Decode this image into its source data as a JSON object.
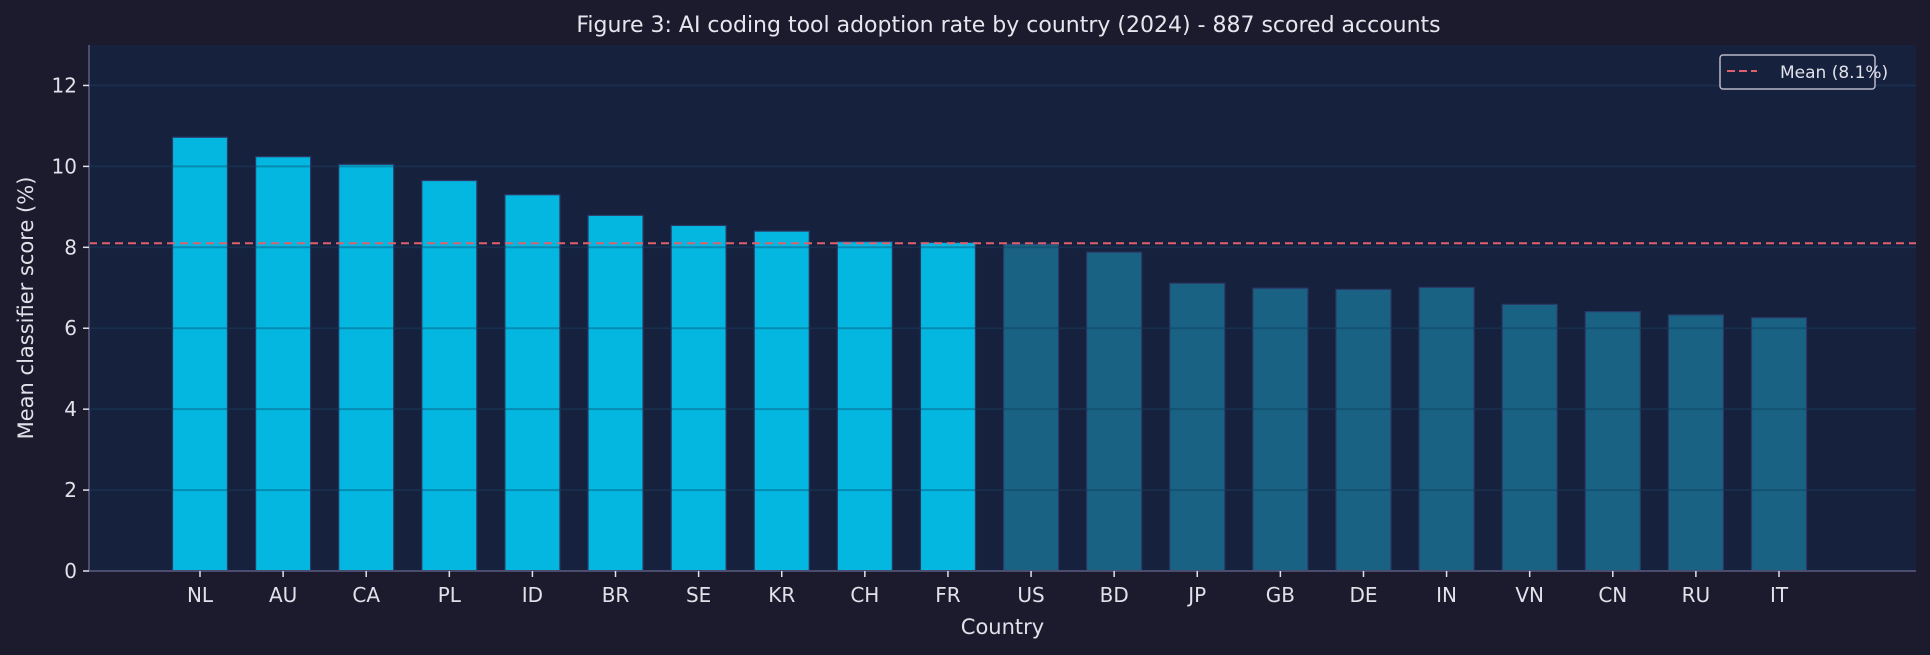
{
  "chart_data": {
    "type": "bar",
    "title": "Figure 3: AI coding tool adoption rate by country (2024) - 887 scored accounts",
    "xlabel": "Country",
    "ylabel": "Mean classifier score (%)",
    "ylim": [
      0,
      13
    ],
    "yticks": [
      0,
      2,
      4,
      6,
      8,
      10,
      12
    ],
    "grid": true,
    "categories": [
      "NL",
      "AU",
      "CA",
      "PL",
      "ID",
      "BR",
      "SE",
      "KR",
      "CH",
      "FR",
      "US",
      "BD",
      "JP",
      "GB",
      "DE",
      "IN",
      "VN",
      "CN",
      "RU",
      "IT"
    ],
    "values": [
      10.72,
      10.24,
      10.05,
      9.65,
      9.3,
      8.79,
      8.54,
      8.4,
      8.14,
      8.12,
      8.08,
      7.88,
      7.11,
      6.99,
      6.96,
      7.01,
      6.59,
      6.41,
      6.33,
      6.26
    ],
    "above_mean_color": "#04b7e0",
    "below_mean_color": "#1a6283",
    "mean_line": {
      "value": 8.1,
      "label": "Mean (8.1%)",
      "color": "#e0606e",
      "style": "dashed"
    },
    "legend": {
      "placement": "top-right",
      "entries": [
        "Mean (8.1%)"
      ]
    }
  },
  "colors": {
    "figure_background": "#1b1b2d",
    "plot_background": "#16213d",
    "grid": "#232a48",
    "axis": "#4a4d6e",
    "text": "#e1e1ea",
    "bar_edge": "#2a3a66"
  }
}
